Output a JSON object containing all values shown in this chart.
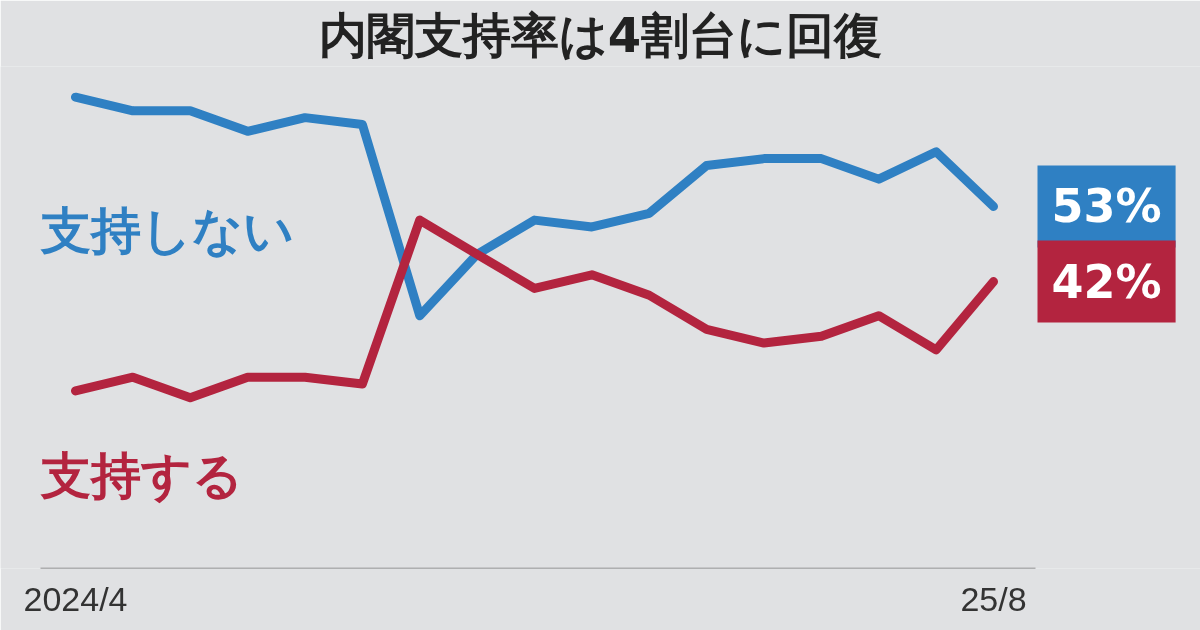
{
  "chart_data": {
    "type": "line",
    "title": "内閣支持率は4割台に回復",
    "categories": [
      "2024/4",
      null,
      null,
      null,
      null,
      null,
      null,
      null,
      null,
      null,
      null,
      null,
      null,
      null,
      null,
      null,
      "25/8"
    ],
    "series": [
      {
        "name": "支持しない",
        "color": "#2f80c3",
        "values": [
          69,
          67,
          67,
          64,
          66,
          65,
          37,
          46,
          51,
          50,
          52,
          59,
          60,
          60,
          57,
          61,
          53
        ],
        "value_labels": [
          null,
          null,
          null,
          null,
          null,
          null,
          null,
          null,
          null,
          null,
          null,
          null,
          null,
          null,
          null,
          null,
          "53%"
        ]
      },
      {
        "name": "支持する",
        "color": "#b3243f",
        "values": [
          26,
          28,
          25,
          28,
          28,
          27,
          51,
          46,
          41,
          43,
          40,
          35,
          33,
          34,
          37,
          32,
          42
        ],
        "value_labels": [
          null,
          null,
          null,
          null,
          null,
          null,
          null,
          null,
          null,
          null,
          null,
          null,
          null,
          null,
          null,
          null,
          "42%"
        ]
      }
    ],
    "tick_labels": "x",
    "legend": false,
    "marker": "none",
    "line_style": "solid"
  }
}
